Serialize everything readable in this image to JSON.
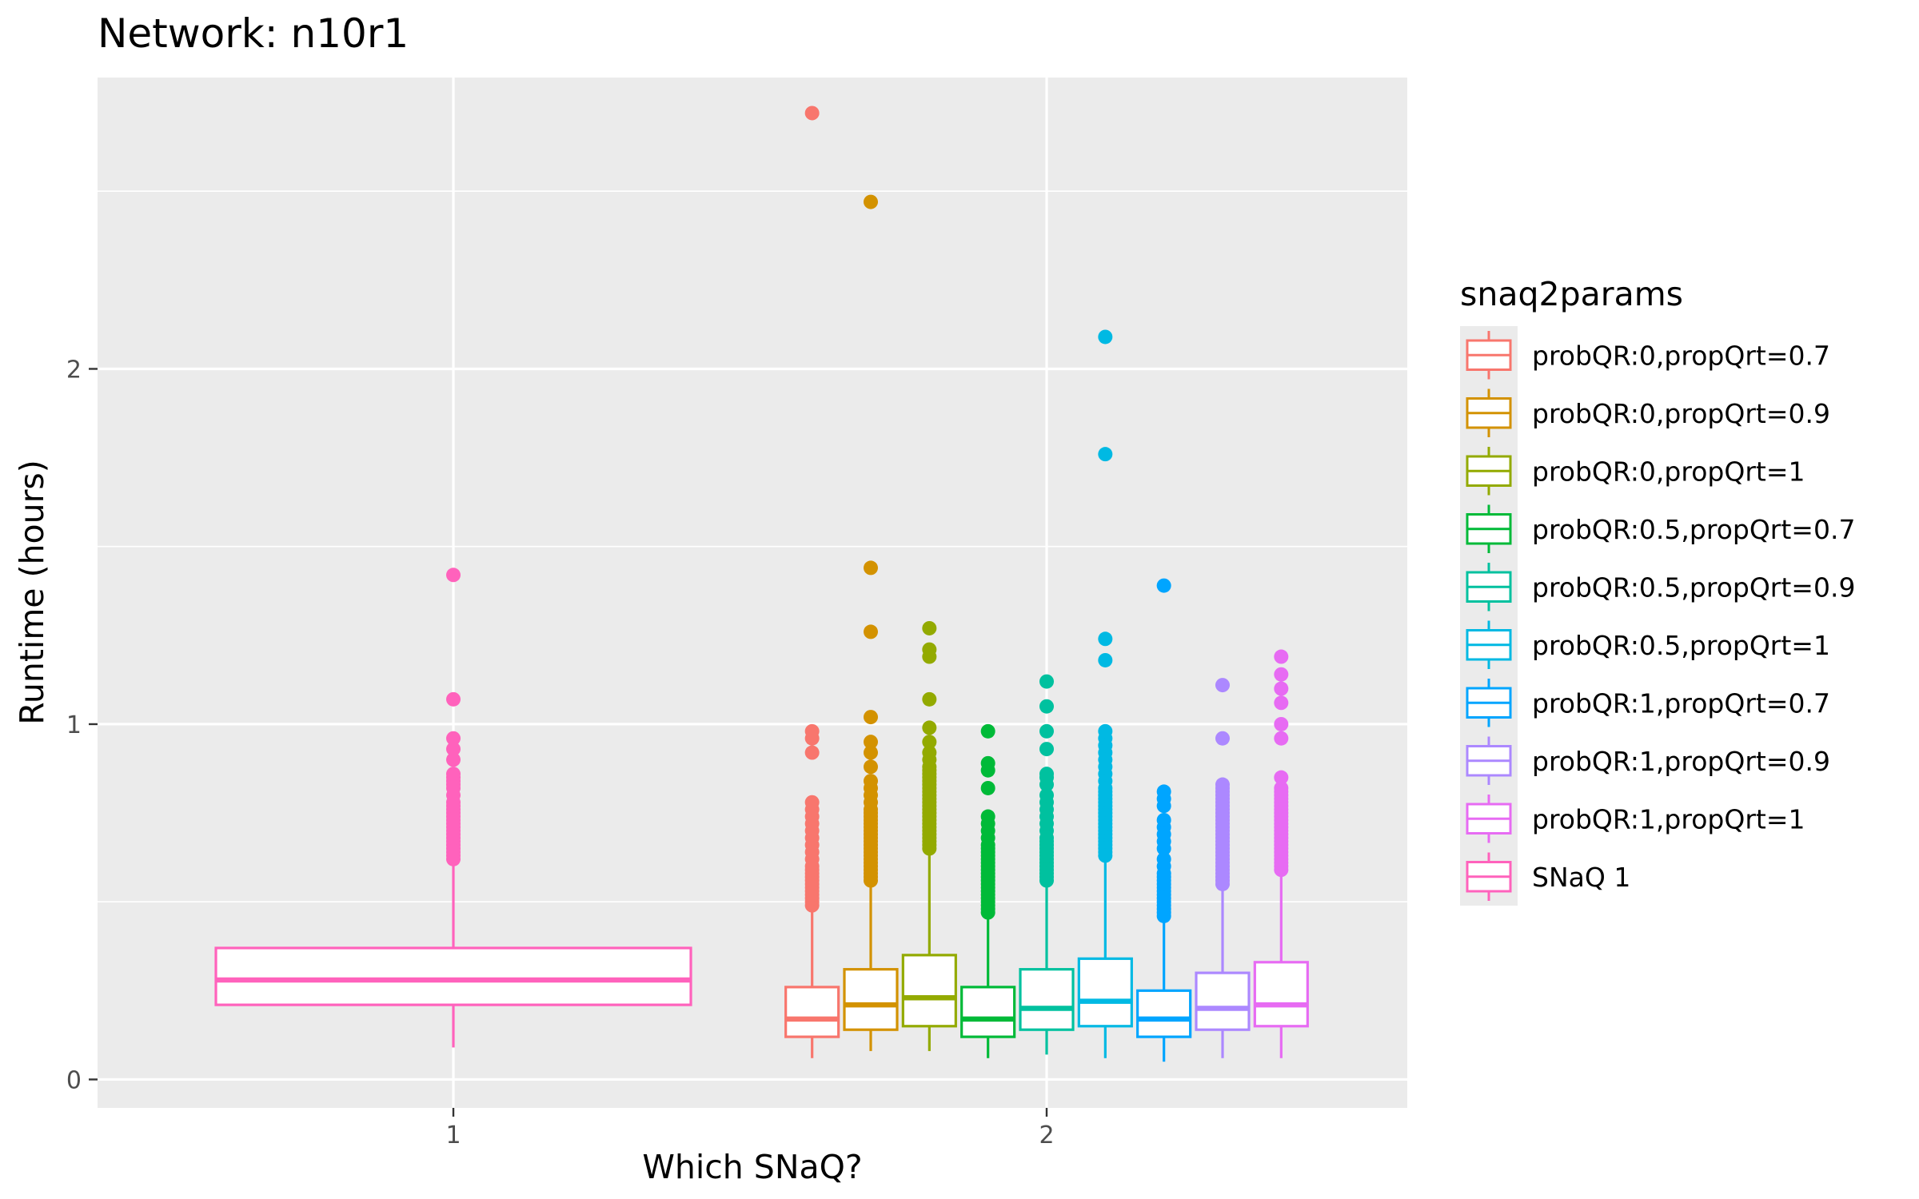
{
  "chart_data": {
    "type": "boxplot",
    "title": "Network: n10r1",
    "xlabel": "Which SNaQ?",
    "ylabel": "Runtime (hours)",
    "x_categories": [
      "1",
      "2"
    ],
    "ylim": [
      -0.08,
      2.82
    ],
    "y_ticks": [
      0,
      1,
      2
    ],
    "grid": true,
    "legend": {
      "title": "snaq2params",
      "position": "right"
    },
    "series": [
      {
        "name": "probQR:0,propQrt=0.7",
        "color": "#F8766D",
        "x": "2",
        "whisker_low": 0.06,
        "q1": 0.12,
        "median": 0.17,
        "q3": 0.26,
        "whisker_high": 0.48,
        "outliers": [
          0.49,
          0.5,
          0.51,
          0.52,
          0.53,
          0.54,
          0.55,
          0.56,
          0.57,
          0.58,
          0.59,
          0.6,
          0.62,
          0.64,
          0.66,
          0.68,
          0.7,
          0.72,
          0.74,
          0.76,
          0.78,
          0.92,
          0.96,
          0.98,
          2.72
        ]
      },
      {
        "name": "probQR:0,propQrt=0.9",
        "color": "#D39200",
        "x": "2",
        "whisker_low": 0.08,
        "q1": 0.14,
        "median": 0.21,
        "q3": 0.31,
        "whisker_high": 0.55,
        "outliers": [
          0.56,
          0.57,
          0.58,
          0.59,
          0.6,
          0.61,
          0.62,
          0.63,
          0.64,
          0.65,
          0.66,
          0.67,
          0.68,
          0.69,
          0.7,
          0.71,
          0.72,
          0.73,
          0.74,
          0.75,
          0.76,
          0.78,
          0.8,
          0.82,
          0.84,
          0.88,
          0.92,
          0.95,
          1.02,
          1.26,
          1.44,
          2.47
        ]
      },
      {
        "name": "probQR:0,propQrt=1",
        "color": "#93AA00",
        "x": "2",
        "whisker_low": 0.08,
        "q1": 0.15,
        "median": 0.23,
        "q3": 0.35,
        "whisker_high": 0.64,
        "outliers": [
          0.65,
          0.66,
          0.67,
          0.68,
          0.69,
          0.7,
          0.71,
          0.72,
          0.73,
          0.74,
          0.75,
          0.76,
          0.77,
          0.78,
          0.79,
          0.8,
          0.81,
          0.82,
          0.83,
          0.84,
          0.85,
          0.86,
          0.87,
          0.88,
          0.9,
          0.92,
          0.95,
          0.99,
          1.07,
          1.19,
          1.21,
          1.27
        ]
      },
      {
        "name": "probQR:0.5,propQrt=0.7",
        "color": "#00BA38",
        "x": "2",
        "whisker_low": 0.06,
        "q1": 0.12,
        "median": 0.17,
        "q3": 0.26,
        "whisker_high": 0.46,
        "outliers": [
          0.47,
          0.48,
          0.49,
          0.5,
          0.51,
          0.52,
          0.53,
          0.54,
          0.55,
          0.56,
          0.57,
          0.58,
          0.59,
          0.6,
          0.61,
          0.62,
          0.63,
          0.64,
          0.65,
          0.66,
          0.68,
          0.7,
          0.72,
          0.74,
          0.82,
          0.87,
          0.89,
          0.98
        ]
      },
      {
        "name": "probQR:0.5,propQrt=0.9",
        "color": "#00C19F",
        "x": "2",
        "whisker_low": 0.07,
        "q1": 0.14,
        "median": 0.2,
        "q3": 0.31,
        "whisker_high": 0.55,
        "outliers": [
          0.56,
          0.57,
          0.58,
          0.59,
          0.6,
          0.61,
          0.62,
          0.63,
          0.64,
          0.65,
          0.66,
          0.67,
          0.68,
          0.7,
          0.72,
          0.74,
          0.76,
          0.78,
          0.8,
          0.83,
          0.85,
          0.86,
          0.93,
          0.98,
          1.05,
          1.12
        ]
      },
      {
        "name": "probQR:0.5,propQrt=1",
        "color": "#00B9E3",
        "x": "2",
        "whisker_low": 0.06,
        "q1": 0.15,
        "median": 0.22,
        "q3": 0.34,
        "whisker_high": 0.62,
        "outliers": [
          0.63,
          0.64,
          0.65,
          0.66,
          0.67,
          0.68,
          0.69,
          0.7,
          0.71,
          0.72,
          0.73,
          0.74,
          0.75,
          0.76,
          0.77,
          0.78,
          0.79,
          0.8,
          0.81,
          0.82,
          0.84,
          0.86,
          0.88,
          0.9,
          0.92,
          0.94,
          0.96,
          0.98,
          1.18,
          1.24,
          1.76,
          2.09
        ]
      },
      {
        "name": "probQR:1,propQrt=0.7",
        "color": "#00A5FF",
        "x": "2",
        "whisker_low": 0.05,
        "q1": 0.12,
        "median": 0.17,
        "q3": 0.25,
        "whisker_high": 0.45,
        "outliers": [
          0.46,
          0.47,
          0.48,
          0.49,
          0.5,
          0.51,
          0.52,
          0.53,
          0.54,
          0.55,
          0.56,
          0.57,
          0.58,
          0.6,
          0.62,
          0.65,
          0.67,
          0.69,
          0.71,
          0.73,
          0.77,
          0.79,
          0.81,
          1.39
        ]
      },
      {
        "name": "probQR:1,propQrt=0.9",
        "color": "#AC88FF",
        "x": "2",
        "whisker_low": 0.06,
        "q1": 0.14,
        "median": 0.2,
        "q3": 0.3,
        "whisker_high": 0.54,
        "outliers": [
          0.55,
          0.56,
          0.57,
          0.58,
          0.59,
          0.6,
          0.61,
          0.62,
          0.63,
          0.64,
          0.65,
          0.66,
          0.67,
          0.68,
          0.69,
          0.7,
          0.71,
          0.72,
          0.73,
          0.74,
          0.75,
          0.76,
          0.77,
          0.78,
          0.79,
          0.8,
          0.81,
          0.82,
          0.83,
          0.96,
          1.11
        ]
      },
      {
        "name": "probQR:1,propQrt=1",
        "color": "#E76BF3",
        "x": "2",
        "whisker_low": 0.06,
        "q1": 0.15,
        "median": 0.21,
        "q3": 0.33,
        "whisker_high": 0.58,
        "outliers": [
          0.59,
          0.6,
          0.61,
          0.62,
          0.63,
          0.64,
          0.65,
          0.66,
          0.67,
          0.68,
          0.69,
          0.7,
          0.71,
          0.72,
          0.73,
          0.74,
          0.75,
          0.76,
          0.77,
          0.78,
          0.79,
          0.8,
          0.81,
          0.82,
          0.85,
          0.96,
          1.0,
          1.06,
          1.1,
          1.14,
          1.19
        ]
      },
      {
        "name": "SNaQ 1",
        "color": "#FF62BC",
        "x": "1",
        "whisker_low": 0.09,
        "q1": 0.21,
        "median": 0.28,
        "q3": 0.37,
        "whisker_high": 0.61,
        "outliers": [
          0.62,
          0.63,
          0.64,
          0.65,
          0.66,
          0.67,
          0.68,
          0.69,
          0.7,
          0.71,
          0.72,
          0.73,
          0.74,
          0.75,
          0.76,
          0.77,
          0.78,
          0.8,
          0.82,
          0.83,
          0.84,
          0.85,
          0.86,
          0.9,
          0.93,
          0.96,
          1.07,
          1.42
        ]
      }
    ]
  }
}
